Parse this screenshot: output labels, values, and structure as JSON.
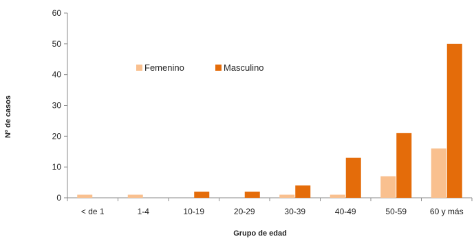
{
  "chart_data": {
    "type": "bar",
    "title": "",
    "xlabel": "Grupo de edad",
    "ylabel": "Nº de casos",
    "ylim": [
      0,
      60
    ],
    "yticks": [
      0,
      10,
      20,
      30,
      40,
      50,
      60
    ],
    "grid": false,
    "legend_position": "upper-left-inside",
    "categories": [
      "< de 1",
      "1-4",
      "10-19",
      "20-29",
      "30-39",
      "40-49",
      "50-59",
      "60 y más"
    ],
    "series": [
      {
        "name": "Femenino",
        "color": "#F9C08F",
        "values": [
          1,
          1,
          0,
          0,
          1,
          1,
          7,
          16
        ]
      },
      {
        "name": "Masculino",
        "color": "#E46C0A",
        "values": [
          0,
          0,
          2,
          2,
          4,
          13,
          21,
          50
        ]
      }
    ]
  }
}
